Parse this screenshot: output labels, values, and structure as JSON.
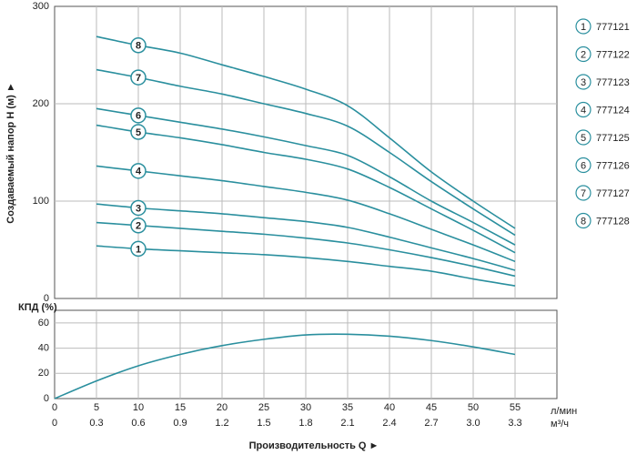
{
  "chart_data": [
    {
      "type": "line",
      "ylabel": "Создаваемый напор Н (м) ►",
      "color": "#2a8f9e",
      "x": [
        5,
        10,
        15,
        20,
        25,
        30,
        35,
        40,
        45,
        50,
        55
      ],
      "xlim": [
        0,
        60
      ],
      "xticks": [
        0,
        5,
        10,
        15,
        20,
        25,
        30,
        35,
        40,
        45,
        50,
        55
      ],
      "ylim": [
        0,
        300
      ],
      "yticks": [
        0,
        100,
        200,
        300
      ],
      "grid": true,
      "series": [
        {
          "name": "777121",
          "label": "1",
          "values": [
            54,
            51,
            49,
            47,
            45,
            42,
            38,
            33,
            28,
            20,
            13
          ]
        },
        {
          "name": "777122",
          "label": "2",
          "values": [
            78,
            75,
            72,
            69,
            66,
            62,
            57,
            50,
            42,
            33,
            23
          ]
        },
        {
          "name": "777123",
          "label": "3",
          "values": [
            97,
            93,
            90,
            87,
            83,
            79,
            73,
            63,
            52,
            41,
            29
          ]
        },
        {
          "name": "777124",
          "label": "4",
          "values": [
            136,
            131,
            126,
            121,
            115,
            109,
            101,
            87,
            71,
            55,
            38
          ]
        },
        {
          "name": "777125",
          "label": "5",
          "values": [
            178,
            171,
            165,
            158,
            150,
            143,
            133,
            114,
            92,
            70,
            47
          ]
        },
        {
          "name": "777126",
          "label": "6",
          "values": [
            195,
            188,
            181,
            174,
            166,
            157,
            147,
            125,
            100,
            78,
            55
          ]
        },
        {
          "name": "777127",
          "label": "7",
          "values": [
            235,
            227,
            218,
            210,
            200,
            190,
            177,
            150,
            120,
            92,
            65
          ]
        },
        {
          "name": "777128",
          "label": "8",
          "values": [
            269,
            260,
            252,
            240,
            228,
            215,
            198,
            165,
            130,
            100,
            72
          ]
        }
      ]
    },
    {
      "type": "line",
      "ylabel": "КПД (%)",
      "xlabel": "Производительность Q ►",
      "color": "#2a8f9e",
      "x": [
        0,
        5,
        10,
        15,
        20,
        25,
        30,
        35,
        40,
        45,
        50,
        55
      ],
      "values": [
        0,
        14,
        26,
        35,
        42,
        47,
        50.5,
        51,
        49.5,
        46,
        41,
        35
      ],
      "xlim": [
        0,
        60
      ],
      "xticks": [
        0,
        5,
        10,
        15,
        20,
        25,
        30,
        35,
        40,
        45,
        50,
        55
      ],
      "x_unit": "л/мин",
      "x2lim": [
        0,
        3.6
      ],
      "x2ticks": [
        0,
        0.3,
        0.6,
        0.9,
        1.2,
        1.5,
        1.8,
        2.1,
        2.4,
        2.7,
        {
          "value": 3,
          "label": "3.0"
        },
        3.3
      ],
      "x2_unit": "м³/ч",
      "ylim": [
        0,
        70
      ],
      "yticks": [
        0,
        20,
        40,
        60
      ],
      "grid": true
    }
  ]
}
